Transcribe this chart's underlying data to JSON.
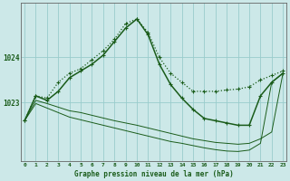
{
  "title": "Graphe pression niveau de la mer (hPa)",
  "background_color": "#cce8e8",
  "grid_color": "#99cccc",
  "line_color": "#1a5c1a",
  "hours": [
    0,
    1,
    2,
    3,
    4,
    5,
    6,
    7,
    8,
    9,
    10,
    11,
    12,
    13,
    14,
    15,
    16,
    17,
    18,
    19,
    20,
    21,
    22,
    23
  ],
  "series_dot": [
    1022.6,
    1023.15,
    1023.1,
    1023.45,
    1023.65,
    1023.75,
    1023.95,
    1024.15,
    1024.4,
    1024.75,
    1024.85,
    1024.55,
    1024.0,
    1023.65,
    1023.45,
    1023.25,
    1023.25,
    1023.25,
    1023.28,
    1023.3,
    1023.35,
    1023.5,
    1023.6,
    1023.7
  ],
  "series_solid": [
    1022.6,
    1023.15,
    1023.05,
    1023.25,
    1023.55,
    1023.7,
    1023.85,
    1024.05,
    1024.35,
    1024.65,
    1024.85,
    1024.5,
    1023.85,
    1023.4,
    1023.1,
    1022.85,
    1022.65,
    1022.6,
    1022.55,
    1022.5,
    1022.5,
    1023.15,
    1023.45,
    1023.65
  ],
  "series_thin1": [
    1022.6,
    1023.05,
    1022.98,
    1022.9,
    1022.82,
    1022.78,
    1022.72,
    1022.66,
    1022.6,
    1022.55,
    1022.5,
    1022.44,
    1022.38,
    1022.32,
    1022.26,
    1022.2,
    1022.16,
    1022.12,
    1022.1,
    1022.08,
    1022.1,
    1022.2,
    1022.35,
    1023.65
  ],
  "series_thin2": [
    1022.6,
    1022.98,
    1022.88,
    1022.78,
    1022.68,
    1022.62,
    1022.56,
    1022.5,
    1022.44,
    1022.38,
    1022.32,
    1022.26,
    1022.2,
    1022.14,
    1022.1,
    1022.05,
    1022.0,
    1021.96,
    1021.93,
    1021.92,
    1021.95,
    1022.1,
    1023.45,
    1023.65
  ],
  "ylim": [
    1021.7,
    1025.2
  ],
  "yticks": [
    1023,
    1024
  ],
  "xlim": [
    -0.3,
    23.3
  ],
  "xticks": [
    0,
    1,
    2,
    3,
    4,
    5,
    6,
    7,
    8,
    9,
    10,
    11,
    12,
    13,
    14,
    15,
    16,
    17,
    18,
    19,
    20,
    21,
    22,
    23
  ]
}
